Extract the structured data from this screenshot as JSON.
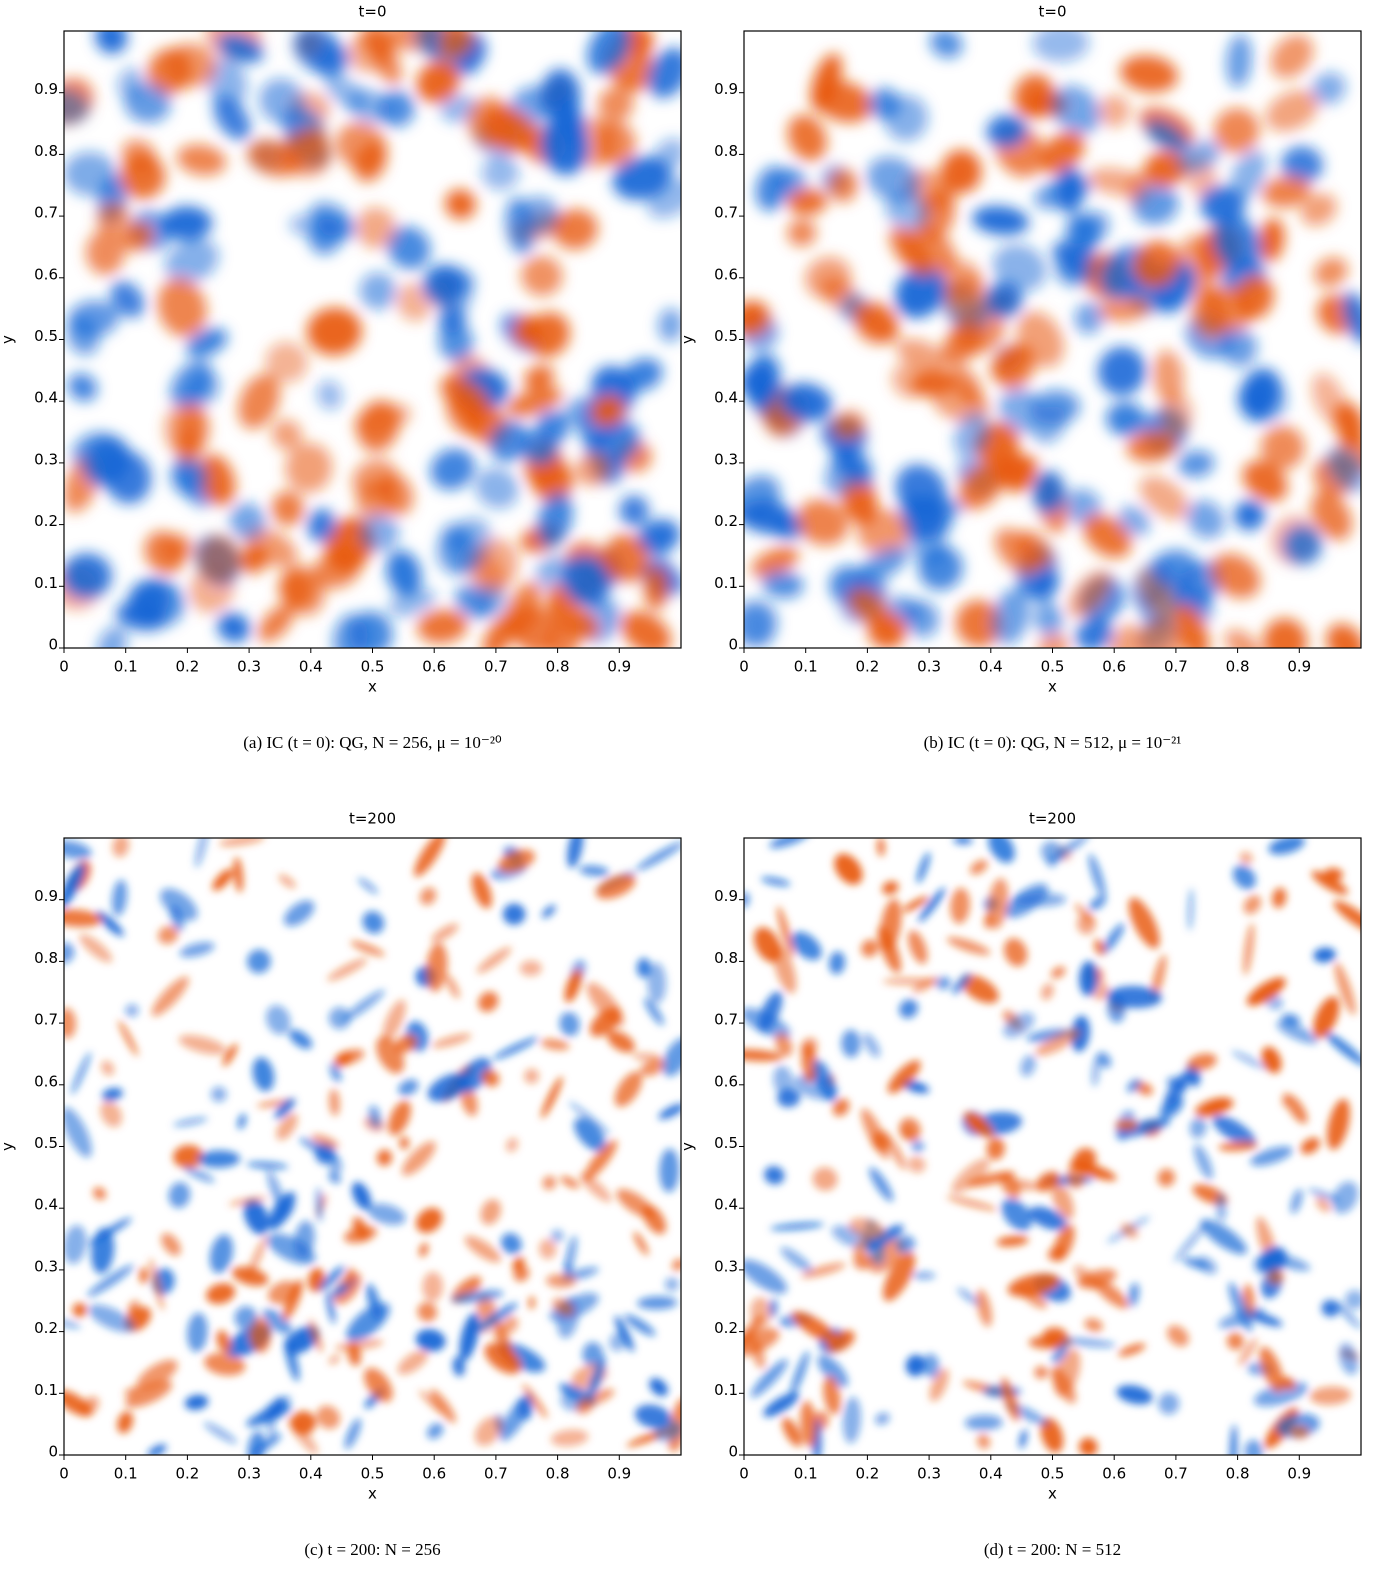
{
  "chart_data": [
    {
      "type": "heatmap",
      "title": "t=0",
      "xlabel": "x",
      "ylabel": "y",
      "caption": "(a) IC (t = 0): QG, N = 256, μ = 10⁻²⁰",
      "xlim": [
        0,
        1
      ],
      "ylim": [
        0,
        1
      ],
      "xticks": [
        0,
        0.1,
        0.2,
        0.3,
        0.4,
        0.5,
        0.6,
        0.7,
        0.8,
        0.9
      ],
      "yticks": [
        0,
        0.1,
        0.2,
        0.3,
        0.4,
        0.5,
        0.6,
        0.7,
        0.8,
        0.9
      ],
      "colormap": [
        "#1466d6",
        "#ffffff",
        "#e8590f"
      ]
    },
    {
      "type": "heatmap",
      "title": "t=0",
      "xlabel": "x",
      "ylabel": "y",
      "caption": "(b) IC (t = 0): QG, N = 512, μ = 10⁻²¹",
      "xlim": [
        0,
        1
      ],
      "ylim": [
        0,
        1
      ],
      "xticks": [
        0,
        0.1,
        0.2,
        0.3,
        0.4,
        0.5,
        0.6,
        0.7,
        0.8,
        0.9
      ],
      "yticks": [
        0,
        0.1,
        0.2,
        0.3,
        0.4,
        0.5,
        0.6,
        0.7,
        0.8,
        0.9
      ],
      "colormap": [
        "#1466d6",
        "#ffffff",
        "#e8590f"
      ]
    },
    {
      "type": "heatmap",
      "title": "t=200",
      "xlabel": "x",
      "ylabel": "y",
      "caption": "(c) t = 200: N = 256",
      "xlim": [
        0,
        1
      ],
      "ylim": [
        0,
        1
      ],
      "xticks": [
        0,
        0.1,
        0.2,
        0.3,
        0.4,
        0.5,
        0.6,
        0.7,
        0.8,
        0.9
      ],
      "yticks": [
        0,
        0.1,
        0.2,
        0.3,
        0.4,
        0.5,
        0.6,
        0.7,
        0.8,
        0.9
      ],
      "colormap": [
        "#1466d6",
        "#ffffff",
        "#e8590f"
      ]
    },
    {
      "type": "heatmap",
      "title": "t=200",
      "xlabel": "x",
      "ylabel": "y",
      "caption": "(d) t = 200: N = 512",
      "xlim": [
        0,
        1
      ],
      "ylim": [
        0,
        1
      ],
      "xticks": [
        0,
        0.1,
        0.2,
        0.3,
        0.4,
        0.5,
        0.6,
        0.7,
        0.8,
        0.9
      ],
      "yticks": [
        0,
        0.1,
        0.2,
        0.3,
        0.4,
        0.5,
        0.6,
        0.7,
        0.8,
        0.9
      ],
      "colormap": [
        "#1466d6",
        "#ffffff",
        "#e8590f"
      ]
    }
  ]
}
